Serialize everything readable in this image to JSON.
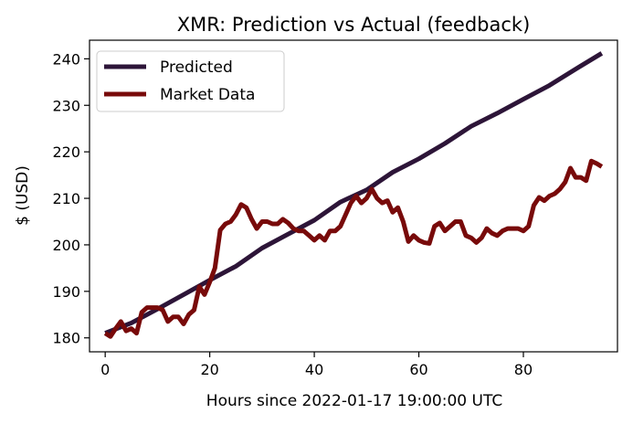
{
  "chart_data": {
    "type": "line",
    "title": "XMR: Prediction vs Actual (feedback)",
    "xlabel": "Hours since 2022-01-17 19:00:00 UTC",
    "ylabel": "$ (USD)",
    "xlim": [
      -3,
      98
    ],
    "ylim": [
      177,
      244
    ],
    "x_ticks": [
      0,
      20,
      40,
      60,
      80
    ],
    "y_ticks": [
      180,
      190,
      200,
      210,
      220,
      230,
      240
    ],
    "grid": false,
    "legend_position": "upper-left",
    "series": [
      {
        "name": "Predicted",
        "color": "#2d1538",
        "x": [
          0,
          5,
          10,
          15,
          20,
          25,
          30,
          35,
          40,
          45,
          50,
          55,
          60,
          65,
          70,
          75,
          80,
          85,
          90,
          95
        ],
        "values": [
          181,
          183.2,
          186.2,
          189.3,
          192.4,
          195.4,
          199.3,
          202.3,
          205.3,
          209.2,
          211.8,
          215.6,
          218.5,
          221.8,
          225.5,
          228.3,
          231.3,
          234.3,
          237.8,
          241.2
        ]
      },
      {
        "name": "Market Data",
        "color": "#780a0a",
        "x": [
          0,
          1,
          2,
          3,
          4,
          5,
          6,
          7,
          8,
          9,
          10,
          11,
          12,
          13,
          14,
          15,
          16,
          17,
          18,
          19,
          20,
          21,
          22,
          23,
          24,
          25,
          26,
          27,
          28,
          29,
          30,
          31,
          32,
          33,
          34,
          35,
          36,
          37,
          38,
          39,
          40,
          41,
          42,
          43,
          44,
          45,
          46,
          47,
          48,
          49,
          50,
          51,
          52,
          53,
          54,
          55,
          56,
          57,
          58,
          59,
          60,
          61,
          62,
          63,
          64,
          65,
          66,
          67,
          68,
          69,
          70,
          71,
          72,
          73,
          74,
          75,
          76,
          77,
          78,
          79,
          80,
          81,
          82,
          83,
          84,
          85,
          86,
          87,
          88,
          89,
          90,
          91,
          92,
          93,
          94,
          95
        ],
        "values": [
          181,
          180.3,
          182,
          183.5,
          181.5,
          182,
          181,
          185.5,
          186.5,
          186.5,
          186.5,
          186,
          183.5,
          184.5,
          184.5,
          183,
          185,
          186,
          191,
          189.3,
          192,
          195,
          203.2,
          204.5,
          205,
          206.5,
          208.7,
          208,
          205.5,
          203.5,
          205,
          205,
          204.5,
          204.5,
          205.5,
          204.7,
          203.5,
          203,
          203,
          202,
          201,
          202,
          201,
          203,
          203,
          204,
          206.5,
          209,
          210.5,
          209,
          210,
          212,
          210,
          209,
          209.5,
          207,
          208,
          205,
          200.7,
          202,
          201,
          200.5,
          200.3,
          204,
          204.7,
          203,
          204,
          205,
          205,
          202,
          201.5,
          200.5,
          201.5,
          203.5,
          202.5,
          202,
          203,
          203.5,
          203.5,
          203.5,
          203,
          204,
          208.5,
          210.2,
          209.5,
          210.5,
          211,
          212,
          213.5,
          216.5,
          214.5,
          214.5,
          213.8,
          218,
          217.5,
          216.8
        ]
      }
    ]
  }
}
